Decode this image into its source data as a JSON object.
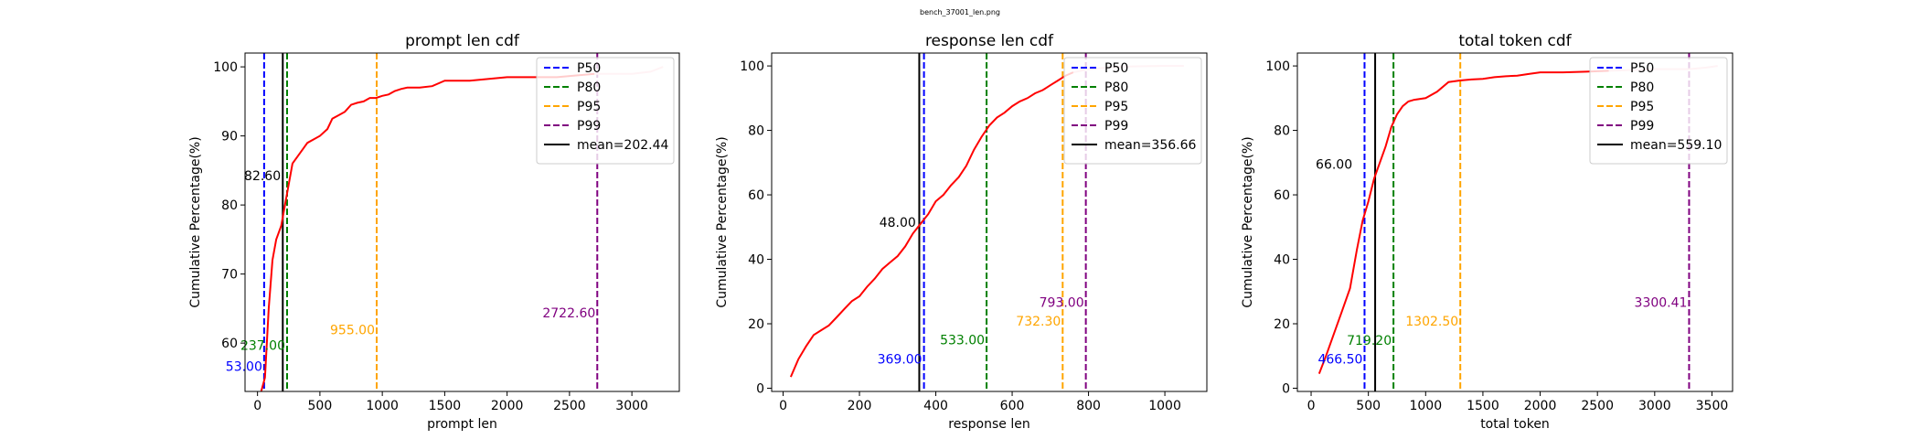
{
  "figure_title": "bench_37001_len.png",
  "colors": {
    "p50": "#0000ff",
    "p80": "#008000",
    "p95": "#ffa500",
    "p99": "#800080",
    "mean": "#000000",
    "cdf_line": "#ff0000",
    "cdf_tail": "#ffc0cb"
  },
  "chart_data": [
    {
      "type": "line",
      "title": "prompt len cdf",
      "xlabel": "prompt len",
      "ylabel": "Cumulative Percentage(%)",
      "xlim": [
        -100,
        3380
      ],
      "ylim": [
        53,
        102
      ],
      "xticks": [
        0,
        500,
        1000,
        1500,
        2000,
        2500,
        3000
      ],
      "yticks": [
        60,
        70,
        80,
        90,
        100
      ],
      "grid": false,
      "legend_position": "top-right",
      "legend": [
        "P50",
        "P80",
        "P95",
        "P99",
        "mean=202.44"
      ],
      "series": [
        {
          "x": [
            30,
            60,
            90,
            120,
            150,
            190,
            220,
            250,
            280,
            320,
            360,
            400,
            450,
            500,
            560,
            600,
            650,
            700,
            750,
            800,
            850,
            900,
            950,
            1000,
            1050,
            1100,
            1150,
            1200,
            1300,
            1400,
            1500,
            1700,
            2000,
            2400,
            2700
          ],
          "y": [
            53,
            55,
            65,
            72,
            75,
            77,
            80,
            83,
            86,
            87,
            88,
            89,
            89.5,
            90,
            91,
            92.5,
            93,
            93.5,
            94.5,
            94.8,
            95,
            95.5,
            95.5,
            95.8,
            96,
            96.5,
            96.8,
            97,
            97,
            97.2,
            98,
            98,
            98.5,
            98.5,
            99
          ]
        }
      ],
      "tail": {
        "x": [
          2700,
          2800,
          3000,
          3150,
          3250
        ],
        "y": [
          99,
          99,
          99,
          99.3,
          100
        ]
      },
      "vlines": [
        {
          "key": "p50",
          "x": 53,
          "dashed": true,
          "label": "53.00",
          "label_y": 56
        },
        {
          "key": "p80",
          "x": 237,
          "dashed": true,
          "label": "237.00",
          "label_y": 59
        },
        {
          "key": "p95",
          "x": 955,
          "dashed": true,
          "label": "955.00",
          "label_y": 61.3
        },
        {
          "key": "p99",
          "x": 2722.6,
          "dashed": true,
          "label": "2722.60",
          "label_y": 63.7
        },
        {
          "key": "mean",
          "x": 202.44,
          "dashed": false
        }
      ],
      "point_label": {
        "text": "82.60",
        "x": 40,
        "y": 83.6
      }
    },
    {
      "type": "line",
      "title": "response len cdf",
      "xlabel": "response len",
      "ylabel": "Cumulative Percentage(%)",
      "xlim": [
        -30,
        1110
      ],
      "ylim": [
        -1,
        104
      ],
      "xticks": [
        0,
        200,
        400,
        600,
        800,
        1000
      ],
      "yticks": [
        0,
        20,
        40,
        60,
        80,
        100
      ],
      "grid": false,
      "legend_position": "top-right",
      "legend": [
        "P50",
        "P80",
        "P95",
        "P99",
        "mean=356.66"
      ],
      "series": [
        {
          "x": [
            20,
            40,
            60,
            80,
            100,
            120,
            140,
            160,
            180,
            200,
            220,
            240,
            260,
            280,
            300,
            320,
            340,
            360,
            380,
            400,
            420,
            440,
            460,
            480,
            500,
            520,
            540,
            560,
            580,
            600,
            620,
            640,
            660,
            680,
            700,
            720,
            740,
            760
          ],
          "y": [
            3.5,
            9,
            13,
            16.5,
            18,
            19.5,
            22,
            24.5,
            27,
            28.5,
            31.5,
            34,
            37,
            39,
            41,
            44,
            48,
            51,
            54,
            58,
            60,
            63,
            65.5,
            69,
            74,
            78,
            81.5,
            84,
            85.5,
            87.5,
            89,
            90,
            91.5,
            92.5,
            94,
            95.5,
            97,
            98
          ]
        }
      ],
      "tail": {
        "x": [
          760,
          800,
          850,
          900,
          950,
          1000,
          1050
        ],
        "y": [
          98,
          99,
          99.5,
          99.8,
          99.9,
          100,
          100
        ]
      },
      "vlines": [
        {
          "key": "p50",
          "x": 369,
          "dashed": true,
          "label": "369.00",
          "label_y": 7.6
        },
        {
          "key": "p80",
          "x": 533,
          "dashed": true,
          "label": "533.00",
          "label_y": 13.6
        },
        {
          "key": "p95",
          "x": 732.3,
          "dashed": true,
          "label": "732.30",
          "label_y": 19.5
        },
        {
          "key": "p99",
          "x": 793,
          "dashed": true,
          "label": "793.00",
          "label_y": 25.3
        },
        {
          "key": "mean",
          "x": 356.66,
          "dashed": false
        }
      ],
      "point_label": {
        "text": "48.00",
        "x": 300,
        "y": 50.1
      }
    },
    {
      "type": "line",
      "title": "total token cdf",
      "xlabel": "total token",
      "ylabel": "Cumulative Percentage(%)",
      "xlim": [
        -120,
        3680
      ],
      "ylim": [
        -1,
        104
      ],
      "xticks": [
        0,
        500,
        1000,
        1500,
        2000,
        2500,
        3000,
        3500
      ],
      "yticks": [
        0,
        20,
        40,
        60,
        80,
        100
      ],
      "grid": false,
      "legend_position": "top-right",
      "legend": [
        "P50",
        "P80",
        "P95",
        "P99",
        "mean=559.10"
      ],
      "series": [
        {
          "x": [
            70,
            130,
            200,
            270,
            340,
            400,
            450,
            500,
            550,
            600,
            650,
            700,
            750,
            800,
            850,
            900,
            1000,
            1100,
            1200,
            1300,
            1400,
            1500,
            1600,
            1700,
            1800,
            1900,
            2000,
            2200,
            2400,
            2600
          ],
          "y": [
            4.5,
            10,
            17,
            24,
            31,
            43,
            52,
            58,
            65,
            70,
            75,
            81,
            85,
            87.5,
            89,
            89.5,
            90,
            92,
            95,
            95.5,
            95.8,
            96,
            96.5,
            96.8,
            97,
            97.5,
            98,
            98,
            98.2,
            98.5
          ]
        }
      ],
      "tail": {
        "x": [
          2600,
          3000,
          3300,
          3450,
          3550
        ],
        "y": [
          98.5,
          99,
          99,
          99.5,
          100
        ]
      },
      "vlines": [
        {
          "key": "p50",
          "x": 466.5,
          "dashed": true,
          "label": "466.50",
          "label_y": 7.7
        },
        {
          "key": "p80",
          "x": 719.2,
          "dashed": true,
          "label": "719.20",
          "label_y": 13.5
        },
        {
          "key": "p95",
          "x": 1302.5,
          "dashed": true,
          "label": "1302.50",
          "label_y": 19.4
        },
        {
          "key": "p99",
          "x": 3300.41,
          "dashed": true,
          "label": "3300.41",
          "label_y": 25.3
        },
        {
          "key": "mean",
          "x": 559.1,
          "dashed": false
        }
      ],
      "point_label": {
        "text": "66.00",
        "x": 200,
        "y": 68.1
      }
    }
  ]
}
